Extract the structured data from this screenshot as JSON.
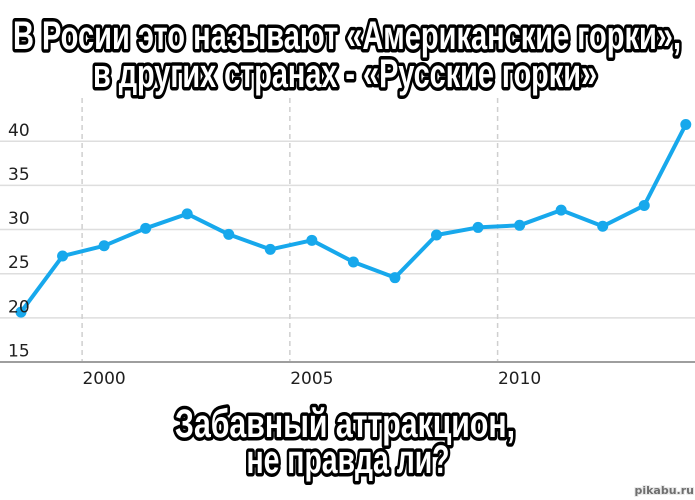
{
  "meme": {
    "top_text": {
      "line1": "В Росии это называют «Американские горки»,",
      "line2": "в других странах - «Русские горки»"
    },
    "bottom_text": {
      "line1": "Забавный аттракцион,",
      "line2": "не правда ли?"
    },
    "watermark": "pikabu.ru"
  },
  "chart_data": {
    "type": "line",
    "x": [
      1998,
      1999,
      2000,
      2001,
      2002,
      2003,
      2004,
      2005,
      2006,
      2007,
      2008,
      2009,
      2010,
      2011,
      2012,
      2013,
      2014
    ],
    "values": [
      20.65,
      27.0,
      28.16,
      30.14,
      31.78,
      29.45,
      27.75,
      28.78,
      26.33,
      24.55,
      29.38,
      30.24,
      30.48,
      32.2,
      30.37,
      32.73,
      41.9
    ],
    "x_ticks": [
      2000,
      2005,
      2010
    ],
    "y_ticks": [
      15,
      20,
      25,
      30,
      35,
      40
    ],
    "xlim": [
      1998,
      2014
    ],
    "ylim": [
      15,
      44
    ],
    "grid": true,
    "legend": false,
    "marker": "circle",
    "line_color": "#17a8ec",
    "grid_color": "#dedede",
    "dashed_grid_color": "#cfcfcf",
    "axis_color": "#9e9e9e",
    "tick_label_color": "#1f1f1f"
  }
}
